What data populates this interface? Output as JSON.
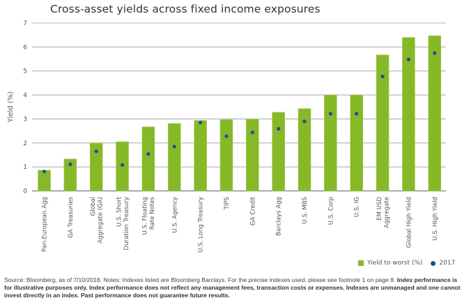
{
  "chart_data": {
    "type": "bar",
    "title": "Cross-asset yields across fixed income exposures",
    "xlabel": "",
    "ylabel": "Yield (%)",
    "ylim": [
      0,
      7
    ],
    "yticks": [
      0,
      1,
      2,
      3,
      4,
      5,
      6,
      7
    ],
    "grid": true,
    "legend_position": "bottom-right",
    "categories": [
      [
        "Pan-European Agg"
      ],
      [
        "GA Treasuries"
      ],
      [
        "Global",
        "Aggregate (GA)"
      ],
      [
        "U.S. Short",
        "Duration Treasury"
      ],
      [
        "U.S. Floating",
        "Rate Notes"
      ],
      [
        "U.S. Agency"
      ],
      [
        "U.S. Long Treasury"
      ],
      [
        "TIPS"
      ],
      [
        "GA Credit"
      ],
      [
        "Barclays Agg"
      ],
      [
        "U.S. MBS"
      ],
      [
        "U.S. Corp"
      ],
      [
        "U.S. IG"
      ],
      [
        "EM USD",
        "Aggregate"
      ],
      [
        "Global High Yield"
      ],
      [
        "U.S. High Yield"
      ]
    ],
    "series": [
      {
        "name": "Yield to worst (%)",
        "kind": "bar",
        "color": "#86b827",
        "values": [
          0.86,
          1.33,
          1.99,
          2.05,
          2.67,
          2.81,
          2.94,
          2.97,
          2.99,
          3.28,
          3.43,
          4.0,
          4.0,
          5.67,
          6.4,
          6.47
        ]
      },
      {
        "name": "2017",
        "kind": "dot",
        "color": "#1c4e9e",
        "values": [
          0.81,
          1.11,
          1.65,
          1.08,
          1.54,
          1.85,
          2.85,
          2.28,
          2.44,
          2.59,
          2.9,
          3.22,
          3.22,
          4.77,
          5.48,
          5.75
        ]
      }
    ]
  },
  "legend": {
    "items": [
      {
        "label": "Yield to worst (%)",
        "color": "#86b827"
      },
      {
        "label": "2017",
        "color": "#1c4e9e"
      }
    ]
  },
  "footnote": {
    "normal_1": "Source: Bloomberg, as of 7/10/2018. Notes: Indexes listed are Bloomberg Barclays. For the precise indexes used, please see footnote 1 on page 8. ",
    "bold_1": "Index performance is for illustrative purposes only.  Index performance does not reflect any management fees, transaction costs or expenses. Indexes are unmanaged and one cannot invest directly in an index. Past performance does not guarantee future results."
  }
}
